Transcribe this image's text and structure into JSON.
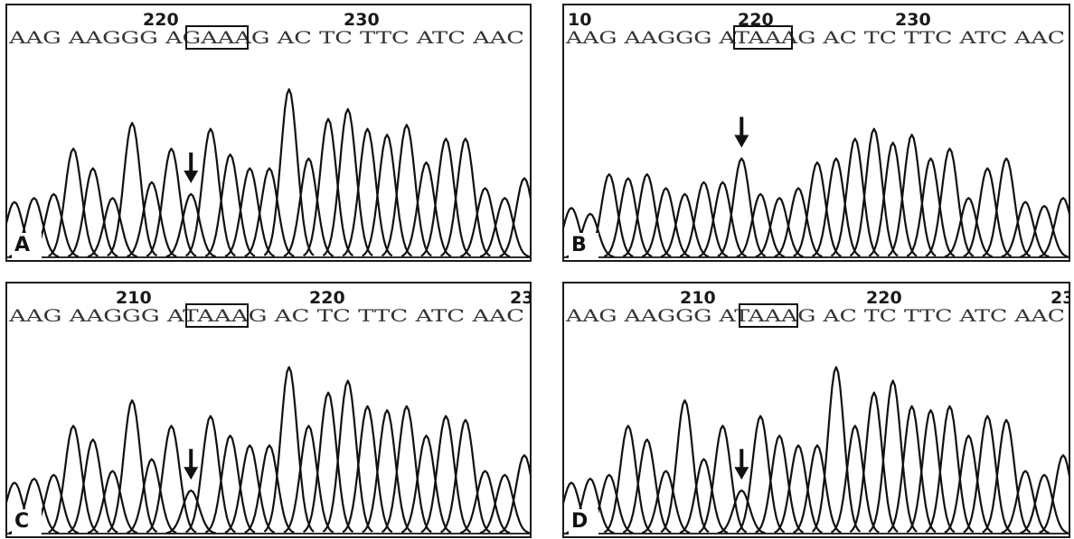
{
  "panels": [
    {
      "letter": "A",
      "position_labels": [
        "220",
        "230"
      ],
      "sequence": "AAG AAGGG AGAAAG AC TC TTC ATC AAC",
      "bases": [
        "A",
        "A",
        "G",
        "A",
        "A",
        "G",
        "G",
        "G",
        "A",
        "G",
        "A",
        "A",
        "A",
        "G",
        "A",
        "C",
        "T",
        "C",
        "T",
        "T",
        "C",
        "A",
        "T",
        "C",
        "A",
        "A",
        "C"
      ],
      "boxed_codon": "GAA",
      "peaks": [
        0.28,
        0.3,
        0.32,
        0.55,
        0.45,
        0.3,
        0.68,
        0.38,
        0.55,
        0.32,
        0.65,
        0.52,
        0.45,
        0.45,
        0.85,
        0.5,
        0.7,
        0.75,
        0.65,
        0.62,
        0.67,
        0.48,
        0.6,
        0.6,
        0.35,
        0.3,
        0.4
      ],
      "arrow_peak": 9
    },
    {
      "letter": "B",
      "position_labels": [
        "10",
        "220",
        "230"
      ],
      "sequence": "AAG AAGGG ATAAAG AC TC TTC ATC AAC",
      "bases": [
        "A",
        "A",
        "G",
        "A",
        "A",
        "G",
        "G",
        "G",
        "A",
        "T",
        "A",
        "A",
        "A",
        "G",
        "A",
        "C",
        "T",
        "C",
        "T",
        "T",
        "C",
        "A",
        "T",
        "C",
        "A",
        "A",
        "C"
      ],
      "boxed_codon": "TAA",
      "peaks": [
        0.25,
        0.22,
        0.42,
        0.4,
        0.42,
        0.35,
        0.32,
        0.38,
        0.38,
        0.5,
        0.32,
        0.3,
        0.35,
        0.48,
        0.5,
        0.6,
        0.65,
        0.58,
        0.62,
        0.5,
        0.55,
        0.3,
        0.45,
        0.5,
        0.28,
        0.26,
        0.3
      ],
      "arrow_peak": 9
    },
    {
      "letter": "C",
      "position_labels": [
        "210",
        "220",
        "23"
      ],
      "sequence": "AAG AAGGG ATAAAG AC TC TTC ATC AAC",
      "bases": [
        "A",
        "A",
        "G",
        "A",
        "A",
        "G",
        "G",
        "G",
        "A",
        "T",
        "A",
        "A",
        "A",
        "G",
        "A",
        "C",
        "T",
        "C",
        "T",
        "T",
        "C",
        "A",
        "T",
        "C",
        "A",
        "A",
        "C"
      ],
      "boxed_codon": "TAA",
      "peaks": [
        0.26,
        0.28,
        0.3,
        0.55,
        0.48,
        0.32,
        0.68,
        0.38,
        0.55,
        0.22,
        0.6,
        0.5,
        0.45,
        0.45,
        0.85,
        0.55,
        0.72,
        0.78,
        0.65,
        0.63,
        0.65,
        0.5,
        0.6,
        0.58,
        0.32,
        0.3,
        0.4
      ],
      "arrow_peak": 9
    },
    {
      "letter": "D",
      "position_labels": [
        "210",
        "220",
        "23"
      ],
      "sequence": "AAG AAGGG ATAAAG AC TC TTC ATC AAC",
      "bases": [
        "A",
        "A",
        "G",
        "A",
        "A",
        "G",
        "G",
        "G",
        "A",
        "T",
        "A",
        "A",
        "A",
        "G",
        "A",
        "C",
        "T",
        "C",
        "T",
        "T",
        "C",
        "A",
        "T",
        "C",
        "A",
        "A",
        "C"
      ],
      "boxed_codon": "TAA",
      "peaks": [
        0.26,
        0.28,
        0.3,
        0.55,
        0.48,
        0.32,
        0.68,
        0.38,
        0.55,
        0.22,
        0.6,
        0.5,
        0.45,
        0.45,
        0.85,
        0.55,
        0.72,
        0.78,
        0.65,
        0.63,
        0.65,
        0.5,
        0.6,
        0.58,
        0.32,
        0.3,
        0.4
      ],
      "arrow_peak": 9
    }
  ]
}
